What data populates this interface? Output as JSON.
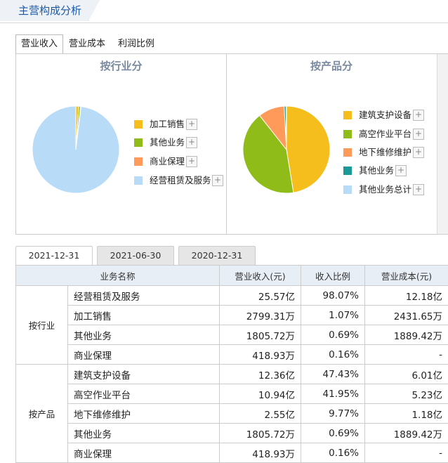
{
  "header": {
    "title": "主营构成分析"
  },
  "tabs": [
    {
      "label": "营业收入",
      "active": true
    },
    {
      "label": "营业成本"
    },
    {
      "label": "利润比例"
    }
  ],
  "chart_data": [
    {
      "type": "pie",
      "title": "按行业分",
      "legend": "right",
      "slices": [
        {
          "label": "加工销售",
          "value": 1.07,
          "color": "#f5be1c"
        },
        {
          "label": "其他业务",
          "value": 0.69,
          "color": "#8fbc19"
        },
        {
          "label": "商业保理",
          "value": 0.16,
          "color": "#ff9a5a"
        },
        {
          "label": "经营租赁及服务",
          "value": 98.07,
          "color": "#b8dcf8"
        }
      ]
    },
    {
      "type": "pie",
      "title": "按产品分",
      "legend": "right",
      "slices": [
        {
          "label": "建筑支护设备",
          "value": 47.43,
          "color": "#f5be1c"
        },
        {
          "label": "高空作业平台",
          "value": 41.95,
          "color": "#8fbc19"
        },
        {
          "label": "地下维修维护",
          "value": 9.77,
          "color": "#ff9a5a"
        },
        {
          "label": "其他业务",
          "value": 0.69,
          "color": "#1a9999"
        },
        {
          "label": "其他业务总计",
          "value": 0.16,
          "color": "#b8dcf8"
        }
      ]
    }
  ],
  "plus_symbol": "+",
  "date_tabs": [
    {
      "label": "2021-12-31",
      "active": true
    },
    {
      "label": "2021-06-30"
    },
    {
      "label": "2020-12-31"
    }
  ],
  "table": {
    "headers": [
      "业务名称",
      "营业收入(元)",
      "收入比例",
      "营业成本(元)"
    ],
    "groups": [
      {
        "name": "按行业",
        "rows": [
          {
            "name": "经营租赁及服务",
            "revenue": "25.57亿",
            "ratio": "98.07%",
            "cost": "12.18亿"
          },
          {
            "name": "加工销售",
            "revenue": "2799.31万",
            "ratio": "1.07%",
            "cost": "2431.65万"
          },
          {
            "name": "其他业务",
            "revenue": "1805.72万",
            "ratio": "0.69%",
            "cost": "1889.42万"
          },
          {
            "name": "商业保理",
            "revenue": "418.93万",
            "ratio": "0.16%",
            "cost": "-"
          }
        ]
      },
      {
        "name": "按产品",
        "rows": [
          {
            "name": "建筑支护设备",
            "revenue": "12.36亿",
            "ratio": "47.43%",
            "cost": "6.01亿"
          },
          {
            "name": "高空作业平台",
            "revenue": "10.94亿",
            "ratio": "41.95%",
            "cost": "5.23亿"
          },
          {
            "name": "地下维修维护",
            "revenue": "2.55亿",
            "ratio": "9.77%",
            "cost": "1.18亿"
          },
          {
            "name": "其他业务",
            "revenue": "1805.72万",
            "ratio": "0.69%",
            "cost": "1889.42万"
          },
          {
            "name": "商业保理",
            "revenue": "418.93万",
            "ratio": "0.16%",
            "cost": "-"
          }
        ]
      }
    ]
  }
}
